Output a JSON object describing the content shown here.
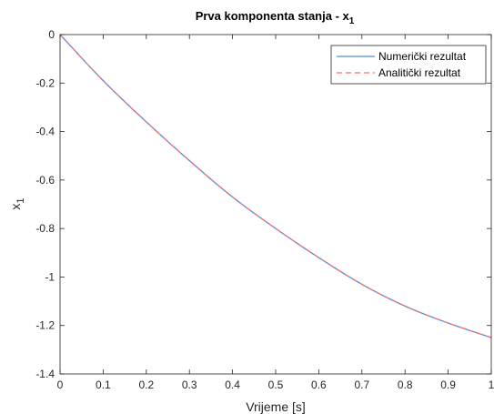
{
  "chart_data": {
    "type": "line",
    "title": "Prva komponenta stanja - x",
    "title_subscript": "1",
    "xlabel": "Vrijeme [s]",
    "ylabel": "x",
    "ylabel_subscript": "1",
    "xlim": [
      0,
      1
    ],
    "ylim": [
      -1.4,
      0
    ],
    "xticks": [
      0,
      0.1,
      0.2,
      0.3,
      0.4,
      0.5,
      0.6,
      0.7,
      0.8,
      0.9,
      1
    ],
    "xtick_labels": [
      "0",
      "0.1",
      "0.2",
      "0.3",
      "0.4",
      "0.5",
      "0.6",
      "0.7",
      "0.8",
      "0.9",
      "1"
    ],
    "yticks": [
      0,
      -0.2,
      -0.4,
      -0.6,
      -0.8,
      -1,
      -1.2,
      -1.4
    ],
    "ytick_labels": [
      "0",
      "-0.2",
      "-0.4",
      "-0.6",
      "-0.8",
      "-1",
      "-1.2",
      "-1.4"
    ],
    "grid": false,
    "legend_position": "top-right",
    "x": [
      0,
      0.1,
      0.2,
      0.3,
      0.4,
      0.5,
      0.6,
      0.7,
      0.8,
      0.9,
      1.0
    ],
    "series": [
      {
        "name": "Numerički rezultat",
        "color": "#4a90d9",
        "style": "solid",
        "values": [
          0,
          -0.19,
          -0.36,
          -0.52,
          -0.67,
          -0.8,
          -0.92,
          -1.03,
          -1.12,
          -1.19,
          -1.25
        ]
      },
      {
        "name": "Analitički rezultat",
        "color": "#ff6b6b",
        "style": "dashed",
        "values": [
          0,
          -0.19,
          -0.36,
          -0.52,
          -0.67,
          -0.8,
          -0.92,
          -1.03,
          -1.12,
          -1.19,
          -1.25
        ]
      }
    ]
  }
}
